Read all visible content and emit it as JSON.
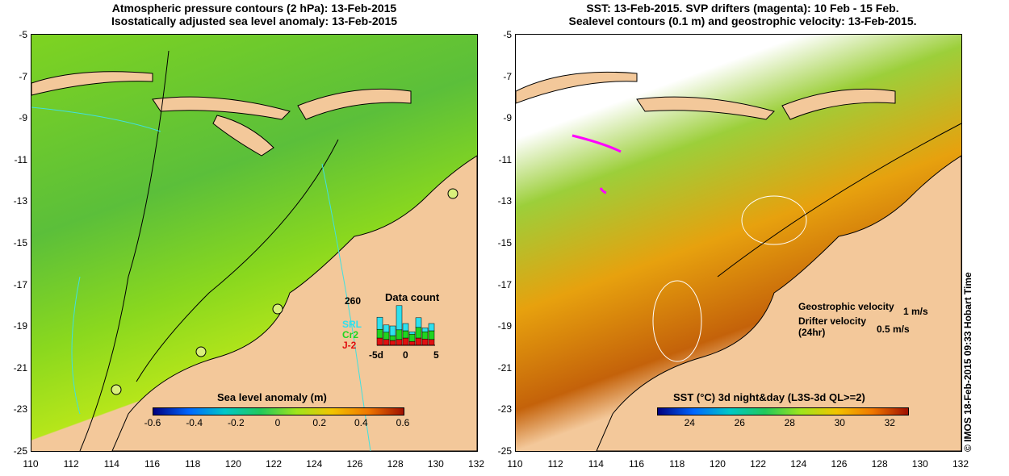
{
  "left_panel": {
    "title_line1": "Atmospheric pressure contours (2 hPa): 13-Feb-2015",
    "title_line2": "Isostatically adjusted sea level anomaly: 13-Feb-2015",
    "colorbar_label": "Sea level anomaly (m)",
    "colorbar_ticks": [
      "-0.6",
      "-0.4",
      "-0.2",
      "0",
      "0.2",
      "0.4",
      "0.6"
    ],
    "colorbar_colors": [
      "#00007f",
      "#0066ff",
      "#00c8c8",
      "#21c95b",
      "#9fe51c",
      "#f2c400",
      "#f07800",
      "#a01000"
    ],
    "data_count": {
      "title": "Data count",
      "max_label": "260",
      "series_labels": [
        "SRL",
        "Cr2",
        "J-2"
      ],
      "series_colors": [
        "#2ee0ee",
        "#1fd51f",
        "#e01010"
      ],
      "x_ticks": [
        "-5d",
        "0",
        "5"
      ],
      "bars": [
        {
          "srl": 25,
          "cr2": 18,
          "j2": 15
        },
        {
          "srl": 15,
          "cr2": 15,
          "j2": 12
        },
        {
          "srl": 20,
          "cr2": 10,
          "j2": 10
        },
        {
          "srl": 50,
          "cr2": 20,
          "j2": 12
        },
        {
          "srl": 15,
          "cr2": 15,
          "j2": 15
        },
        {
          "srl": 5,
          "cr2": 15,
          "j2": 8
        },
        {
          "srl": 20,
          "cr2": 22,
          "j2": 15
        },
        {
          "srl": 8,
          "cr2": 15,
          "j2": 13
        },
        {
          "srl": 15,
          "cr2": 18,
          "j2": 12
        }
      ]
    }
  },
  "right_panel": {
    "title_line1": "SST: 13-Feb-2015. SVP drifters (magenta): 10 Feb - 15 Feb.",
    "title_line2": "Sealevel contours (0.1 m) and geostrophic velocity: 13-Feb-2015.",
    "geostrophic_label": "Geostrophic velocity",
    "geostrophic_scale": "1 m/s",
    "drifter_label": "Drifter velocity",
    "drifter_sub": "(24hr)",
    "drifter_scale": "0.5 m/s",
    "colorbar_label": "SST (°C) 3d night&day (L3S-3d QL>=2)",
    "colorbar_ticks": [
      "24",
      "26",
      "28",
      "30",
      "32"
    ],
    "colorbar_colors": [
      "#00007f",
      "#0066ff",
      "#00c8c8",
      "#21c95b",
      "#9fe51c",
      "#f2c400",
      "#f07800",
      "#a01000"
    ]
  },
  "y_ticks": [
    "-5",
    "-7",
    "-9",
    "-11",
    "-13",
    "-15",
    "-17",
    "-19",
    "-21",
    "-23",
    "-25"
  ],
  "x_ticks": [
    "110",
    "112",
    "114",
    "116",
    "118",
    "120",
    "122",
    "124",
    "126",
    "128",
    "130",
    "132"
  ],
  "credit": "© IMOS 18-Feb-2015 09:33 Hobart Time",
  "colors": {
    "land": "#f3c89a",
    "coastline": "#000000",
    "contour": "#40e0e0"
  }
}
